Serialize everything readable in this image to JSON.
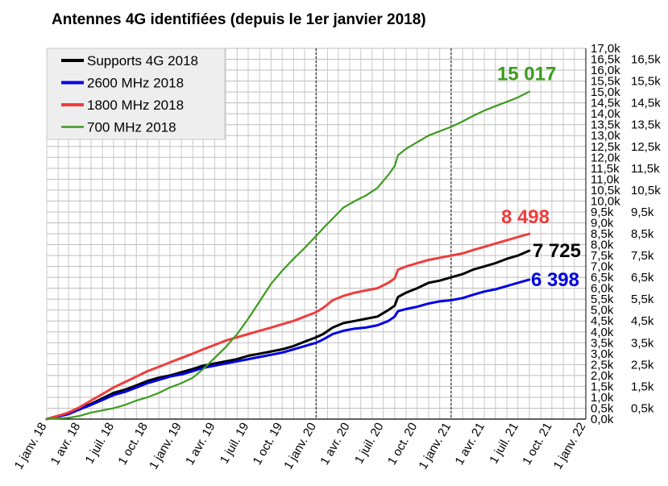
{
  "chart_data": {
    "type": "line",
    "title": "Antennes 4G identifiées (depuis le 1er janvier 2018)",
    "xlabel": "",
    "ylabel": "",
    "x_ticks": [
      "1 janv. 18",
      "1 avr. 18",
      "1 juil. 18",
      "1 oct. 18",
      "1 janv. 19",
      "1 avr. 19",
      "1 juil. 19",
      "1 oct. 19",
      "1 janv. 20",
      "1 avr. 20",
      "1 juil. 20",
      "1 oct. 20",
      "1 janv. 21",
      "1 avr. 21",
      "1 juil. 21",
      "1 oct. 21",
      "1 janv. 22"
    ],
    "x_range": [
      "2018-01-01",
      "2022-01-01"
    ],
    "vertical_markers": [
      "2020-01-01",
      "2021-01-01"
    ],
    "y_left_ticks": [
      "0,0k",
      "0,5k",
      "1,0k",
      "1,5k",
      "2,0k",
      "2,5k",
      "3,0k",
      "3,5k",
      "4,0k",
      "4,5k",
      "5,0k",
      "5,5k",
      "6,0k",
      "6,5k",
      "7,0k",
      "7,5k",
      "8,0k",
      "8,5k",
      "9,0k",
      "9,5k",
      "10,0k",
      "10,5k",
      "11,0k",
      "11,5k",
      "12,0k",
      "12,5k",
      "13,0k",
      "13,5k",
      "14,0k",
      "14,5k",
      "15,0k",
      "15,5k",
      "16,0k",
      "16,5k",
      "17,0k"
    ],
    "y_right_ticks": [
      "0,5k",
      "1,5k",
      "2,5k",
      "3,5k",
      "4,5k",
      "5,5k",
      "6,5k",
      "7,5k",
      "8,5k",
      "9,5k",
      "10,5k",
      "11,5k",
      "12,5k",
      "13,5k",
      "14,5k",
      "15,5k",
      "16,5k"
    ],
    "ylim": [
      0,
      17000
    ],
    "grid": true,
    "legend_position": "top-left",
    "series": [
      {
        "name": "Supports 4G 2018",
        "color": "#000000",
        "end_label": "7 725",
        "points": [
          [
            "2018-01-01",
            0
          ],
          [
            "2018-02-01",
            150
          ],
          [
            "2018-03-01",
            250
          ],
          [
            "2018-04-01",
            500
          ],
          [
            "2018-05-01",
            700
          ],
          [
            "2018-06-01",
            950
          ],
          [
            "2018-07-01",
            1200
          ],
          [
            "2018-08-01",
            1350
          ],
          [
            "2018-09-01",
            1550
          ],
          [
            "2018-10-01",
            1750
          ],
          [
            "2018-11-01",
            1900
          ],
          [
            "2018-12-01",
            2000
          ],
          [
            "2019-01-01",
            2150
          ],
          [
            "2019-02-01",
            2300
          ],
          [
            "2019-03-01",
            2450
          ],
          [
            "2019-04-01",
            2550
          ],
          [
            "2019-05-01",
            2650
          ],
          [
            "2019-06-01",
            2750
          ],
          [
            "2019-07-01",
            2900
          ],
          [
            "2019-08-01",
            3000
          ],
          [
            "2019-09-01",
            3100
          ],
          [
            "2019-10-01",
            3200
          ],
          [
            "2019-11-01",
            3350
          ],
          [
            "2019-12-01",
            3550
          ],
          [
            "2020-01-01",
            3750
          ],
          [
            "2020-01-20",
            3900
          ],
          [
            "2020-02-15",
            4200
          ],
          [
            "2020-03-15",
            4400
          ],
          [
            "2020-04-15",
            4500
          ],
          [
            "2020-05-15",
            4600
          ],
          [
            "2020-06-15",
            4700
          ],
          [
            "2020-07-15",
            5000
          ],
          [
            "2020-08-01",
            5200
          ],
          [
            "2020-08-10",
            5600
          ],
          [
            "2020-09-01",
            5800
          ],
          [
            "2020-10-01",
            6000
          ],
          [
            "2020-11-01",
            6250
          ],
          [
            "2020-12-01",
            6350
          ],
          [
            "2021-01-01",
            6500
          ],
          [
            "2021-02-01",
            6650
          ],
          [
            "2021-03-01",
            6850
          ],
          [
            "2021-04-01",
            7000
          ],
          [
            "2021-05-01",
            7150
          ],
          [
            "2021-06-01",
            7350
          ],
          [
            "2021-07-01",
            7500
          ],
          [
            "2021-08-01",
            7725
          ]
        ]
      },
      {
        "name": "2600 MHz 2018",
        "color": "#0000e6",
        "end_label": "6 398",
        "points": [
          [
            "2018-01-01",
            0
          ],
          [
            "2018-02-01",
            120
          ],
          [
            "2018-03-01",
            230
          ],
          [
            "2018-04-01",
            450
          ],
          [
            "2018-05-01",
            650
          ],
          [
            "2018-06-01",
            880
          ],
          [
            "2018-07-01",
            1100
          ],
          [
            "2018-08-01",
            1250
          ],
          [
            "2018-09-01",
            1450
          ],
          [
            "2018-10-01",
            1650
          ],
          [
            "2018-11-01",
            1800
          ],
          [
            "2018-12-01",
            1950
          ],
          [
            "2019-01-01",
            2050
          ],
          [
            "2019-02-01",
            2200
          ],
          [
            "2019-03-01",
            2350
          ],
          [
            "2019-04-01",
            2450
          ],
          [
            "2019-05-01",
            2550
          ],
          [
            "2019-06-01",
            2650
          ],
          [
            "2019-07-01",
            2750
          ],
          [
            "2019-08-01",
            2850
          ],
          [
            "2019-09-01",
            2950
          ],
          [
            "2019-10-01",
            3050
          ],
          [
            "2019-11-01",
            3200
          ],
          [
            "2019-12-01",
            3350
          ],
          [
            "2020-01-01",
            3500
          ],
          [
            "2020-01-20",
            3650
          ],
          [
            "2020-02-15",
            3900
          ],
          [
            "2020-03-15",
            4050
          ],
          [
            "2020-04-15",
            4150
          ],
          [
            "2020-05-15",
            4200
          ],
          [
            "2020-06-15",
            4300
          ],
          [
            "2020-07-15",
            4500
          ],
          [
            "2020-08-01",
            4700
          ],
          [
            "2020-08-10",
            4950
          ],
          [
            "2020-09-01",
            5050
          ],
          [
            "2020-10-01",
            5150
          ],
          [
            "2020-11-01",
            5300
          ],
          [
            "2020-12-01",
            5400
          ],
          [
            "2021-01-01",
            5450
          ],
          [
            "2021-02-01",
            5550
          ],
          [
            "2021-03-01",
            5700
          ],
          [
            "2021-04-01",
            5850
          ],
          [
            "2021-05-01",
            5950
          ],
          [
            "2021-06-01",
            6100
          ],
          [
            "2021-07-01",
            6250
          ],
          [
            "2021-08-01",
            6398
          ]
        ]
      },
      {
        "name": "1800 MHz 2018",
        "color": "#f03c3c",
        "end_label": "8 498",
        "points": [
          [
            "2018-01-01",
            0
          ],
          [
            "2018-02-01",
            150
          ],
          [
            "2018-03-01",
            300
          ],
          [
            "2018-04-01",
            550
          ],
          [
            "2018-05-01",
            850
          ],
          [
            "2018-06-01",
            1150
          ],
          [
            "2018-07-01",
            1450
          ],
          [
            "2018-08-01",
            1700
          ],
          [
            "2018-09-01",
            1950
          ],
          [
            "2018-10-01",
            2200
          ],
          [
            "2018-11-01",
            2400
          ],
          [
            "2018-12-01",
            2600
          ],
          [
            "2019-01-01",
            2800
          ],
          [
            "2019-02-01",
            3000
          ],
          [
            "2019-03-01",
            3200
          ],
          [
            "2019-04-01",
            3400
          ],
          [
            "2019-05-01",
            3600
          ],
          [
            "2019-06-01",
            3750
          ],
          [
            "2019-07-01",
            3900
          ],
          [
            "2019-08-01",
            4050
          ],
          [
            "2019-09-01",
            4200
          ],
          [
            "2019-10-01",
            4350
          ],
          [
            "2019-11-01",
            4500
          ],
          [
            "2019-12-01",
            4700
          ],
          [
            "2020-01-01",
            4900
          ],
          [
            "2020-01-20",
            5100
          ],
          [
            "2020-02-15",
            5450
          ],
          [
            "2020-03-15",
            5650
          ],
          [
            "2020-04-15",
            5800
          ],
          [
            "2020-05-15",
            5900
          ],
          [
            "2020-06-15",
            6000
          ],
          [
            "2020-07-15",
            6250
          ],
          [
            "2020-08-01",
            6450
          ],
          [
            "2020-08-10",
            6850
          ],
          [
            "2020-09-01",
            7000
          ],
          [
            "2020-10-01",
            7150
          ],
          [
            "2020-11-01",
            7300
          ],
          [
            "2020-12-01",
            7400
          ],
          [
            "2021-01-01",
            7500
          ],
          [
            "2021-02-01",
            7600
          ],
          [
            "2021-03-01",
            7750
          ],
          [
            "2021-04-01",
            7900
          ],
          [
            "2021-05-01",
            8050
          ],
          [
            "2021-06-01",
            8200
          ],
          [
            "2021-07-01",
            8350
          ],
          [
            "2021-08-01",
            8498
          ]
        ]
      },
      {
        "name": "700 MHz 2018",
        "color": "#3c9b1e",
        "end_label": "15 017",
        "points": [
          [
            "2018-01-01",
            0
          ],
          [
            "2018-02-01",
            30
          ],
          [
            "2018-03-01",
            60
          ],
          [
            "2018-04-01",
            150
          ],
          [
            "2018-05-01",
            300
          ],
          [
            "2018-06-01",
            400
          ],
          [
            "2018-07-01",
            500
          ],
          [
            "2018-08-01",
            650
          ],
          [
            "2018-09-01",
            850
          ],
          [
            "2018-10-01",
            1000
          ],
          [
            "2018-11-01",
            1200
          ],
          [
            "2018-12-01",
            1450
          ],
          [
            "2019-01-01",
            1650
          ],
          [
            "2019-02-01",
            1900
          ],
          [
            "2019-03-01",
            2300
          ],
          [
            "2019-04-01",
            2800
          ],
          [
            "2019-05-01",
            3300
          ],
          [
            "2019-06-01",
            3900
          ],
          [
            "2019-07-01",
            4600
          ],
          [
            "2019-08-01",
            5400
          ],
          [
            "2019-09-01",
            6200
          ],
          [
            "2019-10-01",
            6800
          ],
          [
            "2019-11-01",
            7350
          ],
          [
            "2019-12-01",
            7850
          ],
          [
            "2020-01-01",
            8400
          ],
          [
            "2020-01-20",
            8750
          ],
          [
            "2020-02-15",
            9200
          ],
          [
            "2020-03-15",
            9700
          ],
          [
            "2020-04-15",
            10000
          ],
          [
            "2020-05-15",
            10250
          ],
          [
            "2020-06-15",
            10600
          ],
          [
            "2020-07-15",
            11200
          ],
          [
            "2020-08-01",
            11600
          ],
          [
            "2020-08-10",
            12100
          ],
          [
            "2020-09-01",
            12400
          ],
          [
            "2020-10-01",
            12700
          ],
          [
            "2020-11-01",
            13000
          ],
          [
            "2020-12-01",
            13200
          ],
          [
            "2021-01-01",
            13400
          ],
          [
            "2021-02-01",
            13650
          ],
          [
            "2021-03-01",
            13900
          ],
          [
            "2021-04-01",
            14150
          ],
          [
            "2021-05-01",
            14350
          ],
          [
            "2021-06-01",
            14550
          ],
          [
            "2021-07-01",
            14750
          ],
          [
            "2021-08-01",
            15017
          ]
        ]
      }
    ]
  }
}
